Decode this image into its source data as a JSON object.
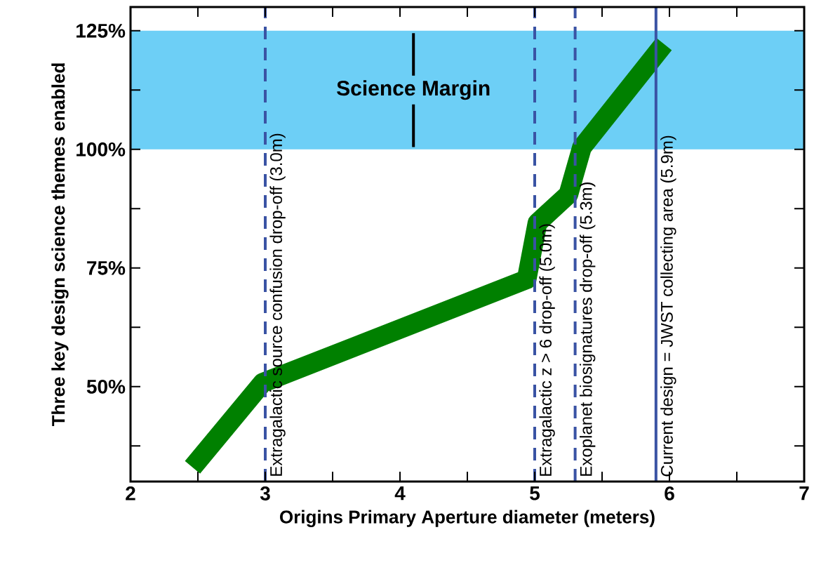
{
  "chart_data": {
    "type": "line",
    "xlabel": "Origins Primary Aperture diameter (meters)",
    "ylabel": "Three key design science themes enabled",
    "x": [
      2.46,
      2.98,
      4.94,
      5.02,
      5.25,
      5.35,
      5.96
    ],
    "series": [
      {
        "color": "#008000",
        "values": [
          33,
          50.8,
          72.6,
          84.5,
          90.5,
          100.4,
          122.2
        ]
      }
    ],
    "xlim": [
      2,
      7
    ],
    "ylim": [
      30,
      130
    ],
    "xticks": [
      2,
      {
        "value": 2.5,
        "label": null
      },
      3,
      {
        "value": 3.5,
        "label": null
      },
      4,
      {
        "value": 4.5,
        "label": null
      },
      5,
      {
        "value": 5.5,
        "label": null
      },
      6,
      {
        "value": 6.5,
        "label": null
      },
      7
    ],
    "yticks": [
      {
        "value": 37.5,
        "label": null
      },
      {
        "value": 50,
        "label": "50%"
      },
      {
        "value": 62.5,
        "label": null
      },
      {
        "value": 75,
        "label": "75%"
      },
      {
        "value": 87.5,
        "label": null
      },
      {
        "value": 100,
        "label": "100%"
      },
      {
        "value": 112.5,
        "label": null
      },
      {
        "value": 125,
        "label": "125%"
      }
    ],
    "bands": [
      {
        "axis": "y",
        "from": 100,
        "to": 125,
        "label": "Science Margin",
        "color": "#6dcff6"
      }
    ],
    "ref_lines": [
      {
        "axis": "x",
        "value": 3.0,
        "label": "Extragalactic source confusion drop-off (3.0m)",
        "color": "#3a53a4",
        "line_style": "dashed"
      },
      {
        "axis": "x",
        "value": 5.0,
        "label": "Extragalactic z > 6 drop-off (5.0m)",
        "color": "#3a53a4",
        "line_style": "dashed"
      },
      {
        "axis": "x",
        "value": 5.3,
        "label": "Exoplanet biosignatures drop-off (5.3m)",
        "color": "#3a53a4",
        "line_style": "dashed"
      },
      {
        "axis": "x",
        "value": 5.9,
        "label": "Current design = JWST collecting area (5.9m)",
        "color": "#3a53a4",
        "line_style": "solid"
      }
    ],
    "grid": false,
    "marker": "none",
    "line_style": "solid"
  }
}
